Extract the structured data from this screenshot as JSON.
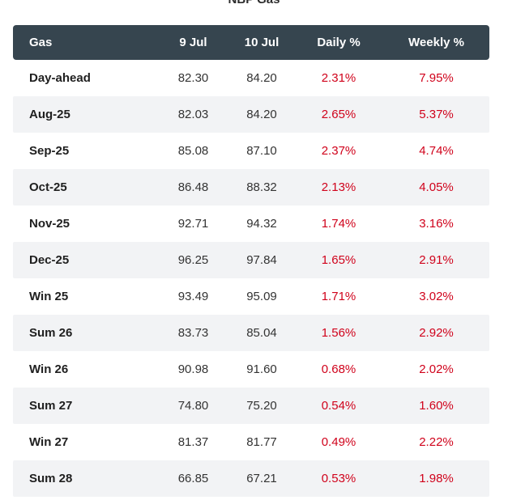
{
  "title": "NBP Gas",
  "colors": {
    "header_bg": "#36454f",
    "alt_row_bg": "#f2f3f5",
    "positive": "#d0021b"
  },
  "columns": [
    "Gas",
    "9 Jul",
    "10 Jul",
    "Daily %",
    "Weekly %"
  ],
  "rows": [
    {
      "name": "Day-ahead",
      "d1": "82.30",
      "d2": "84.20",
      "daily": "2.31%",
      "weekly": "7.95%"
    },
    {
      "name": "Aug-25",
      "d1": "82.03",
      "d2": "84.20",
      "daily": "2.65%",
      "weekly": "5.37%"
    },
    {
      "name": "Sep-25",
      "d1": "85.08",
      "d2": "87.10",
      "daily": "2.37%",
      "weekly": "4.74%"
    },
    {
      "name": "Oct-25",
      "d1": "86.48",
      "d2": "88.32",
      "daily": "2.13%",
      "weekly": "4.05%"
    },
    {
      "name": "Nov-25",
      "d1": "92.71",
      "d2": "94.32",
      "daily": "1.74%",
      "weekly": "3.16%"
    },
    {
      "name": "Dec-25",
      "d1": "96.25",
      "d2": "97.84",
      "daily": "1.65%",
      "weekly": "2.91%"
    },
    {
      "name": "Win 25",
      "d1": "93.49",
      "d2": "95.09",
      "daily": "1.71%",
      "weekly": "3.02%"
    },
    {
      "name": "Sum 26",
      "d1": "83.73",
      "d2": "85.04",
      "daily": "1.56%",
      "weekly": "2.92%"
    },
    {
      "name": "Win 26",
      "d1": "90.98",
      "d2": "91.60",
      "daily": "0.68%",
      "weekly": "2.02%"
    },
    {
      "name": "Sum 27",
      "d1": "74.80",
      "d2": "75.20",
      "daily": "0.54%",
      "weekly": "1.60%"
    },
    {
      "name": "Win 27",
      "d1": "81.37",
      "d2": "81.77",
      "daily": "0.49%",
      "weekly": "2.22%"
    },
    {
      "name": "Sum 28",
      "d1": "66.85",
      "d2": "67.21",
      "daily": "0.53%",
      "weekly": "1.98%"
    }
  ]
}
